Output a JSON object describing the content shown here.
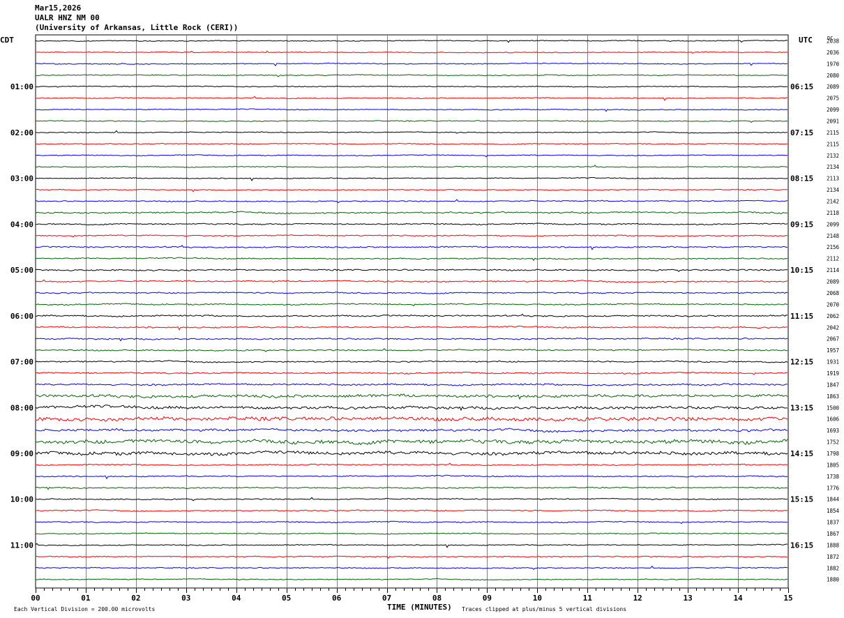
{
  "header": {
    "date": "Mar15,2026",
    "station": "UALR HNZ NM 00",
    "institution": "(University of Arkansas, Little Rock (CERI))"
  },
  "left_axis_title": "CDT",
  "right_axis_title": "UTC",
  "dc_header": "DC",
  "footer": {
    "vertical_division": "Each Vertical Division =  200.00 microvolts",
    "xlabel": "TIME (MINUTES)",
    "clip_note": "Traces clipped at plus/minus 5 vertical divisions"
  },
  "colors": {
    "trace_cycle": [
      "#000000",
      "#ff0000",
      "#0000ff",
      "#006400"
    ],
    "grid": "#808080"
  },
  "chart_data": {
    "type": "line",
    "x_range": [
      0,
      15
    ],
    "x_ticks": [
      "00",
      "01",
      "02",
      "03",
      "04",
      "05",
      "06",
      "07",
      "08",
      "09",
      "10",
      "11",
      "12",
      "13",
      "14",
      "15"
    ],
    "left_time_labels": [
      {
        "row": 4,
        "label": "01:00"
      },
      {
        "row": 8,
        "label": "02:00"
      },
      {
        "row": 12,
        "label": "03:00"
      },
      {
        "row": 16,
        "label": "04:00"
      },
      {
        "row": 20,
        "label": "05:00"
      },
      {
        "row": 24,
        "label": "06:00"
      },
      {
        "row": 28,
        "label": "07:00"
      },
      {
        "row": 32,
        "label": "08:00"
      },
      {
        "row": 36,
        "label": "09:00"
      },
      {
        "row": 40,
        "label": "10:00"
      },
      {
        "row": 44,
        "label": "11:00"
      }
    ],
    "right_time_labels": [
      {
        "row": 4,
        "label": "06:15"
      },
      {
        "row": 8,
        "label": "07:15"
      },
      {
        "row": 12,
        "label": "08:15"
      },
      {
        "row": 16,
        "label": "09:15"
      },
      {
        "row": 20,
        "label": "10:15"
      },
      {
        "row": 24,
        "label": "11:15"
      },
      {
        "row": 28,
        "label": "12:15"
      },
      {
        "row": 32,
        "label": "13:15"
      },
      {
        "row": 36,
        "label": "14:15"
      },
      {
        "row": 40,
        "label": "15:15"
      },
      {
        "row": 44,
        "label": "16:15"
      }
    ],
    "dc_offsets": [
      "2038",
      "2036",
      "1970",
      "2080",
      "2089",
      "2075",
      "2099",
      "2091",
      "2115",
      "2115",
      "2132",
      "2134",
      "2113",
      "2134",
      "2142",
      "2118",
      "2099",
      "2148",
      "2156",
      "2112",
      "2114",
      "2089",
      "2068",
      "2070",
      "2062",
      "2042",
      "2067",
      "1957",
      "1931",
      "1919",
      "1847",
      "1863",
      "1500",
      "1606",
      "1693",
      "1752",
      "1798",
      "1805",
      "1738",
      "1776",
      "1844",
      "1854",
      "1837",
      "1867",
      "1888",
      "1872",
      "1882",
      "1880"
    ],
    "noise_levels": [
      1,
      1,
      1,
      1,
      1,
      1,
      1,
      1,
      1,
      1,
      1,
      1,
      1,
      1,
      1.2,
      1.6,
      1.3,
      1.2,
      1.4,
      1.3,
      1.5,
      1.4,
      1.3,
      1.3,
      1.5,
      1.5,
      1.5,
      1.4,
      1.4,
      1.5,
      1.8,
      3.0,
      3.0,
      4.0,
      2.5,
      4.0,
      3.5,
      1.3,
      1.3,
      1.3,
      1.2,
      1.2,
      1.2,
      1.1,
      1.1,
      1.1,
      1.1,
      1
    ]
  }
}
